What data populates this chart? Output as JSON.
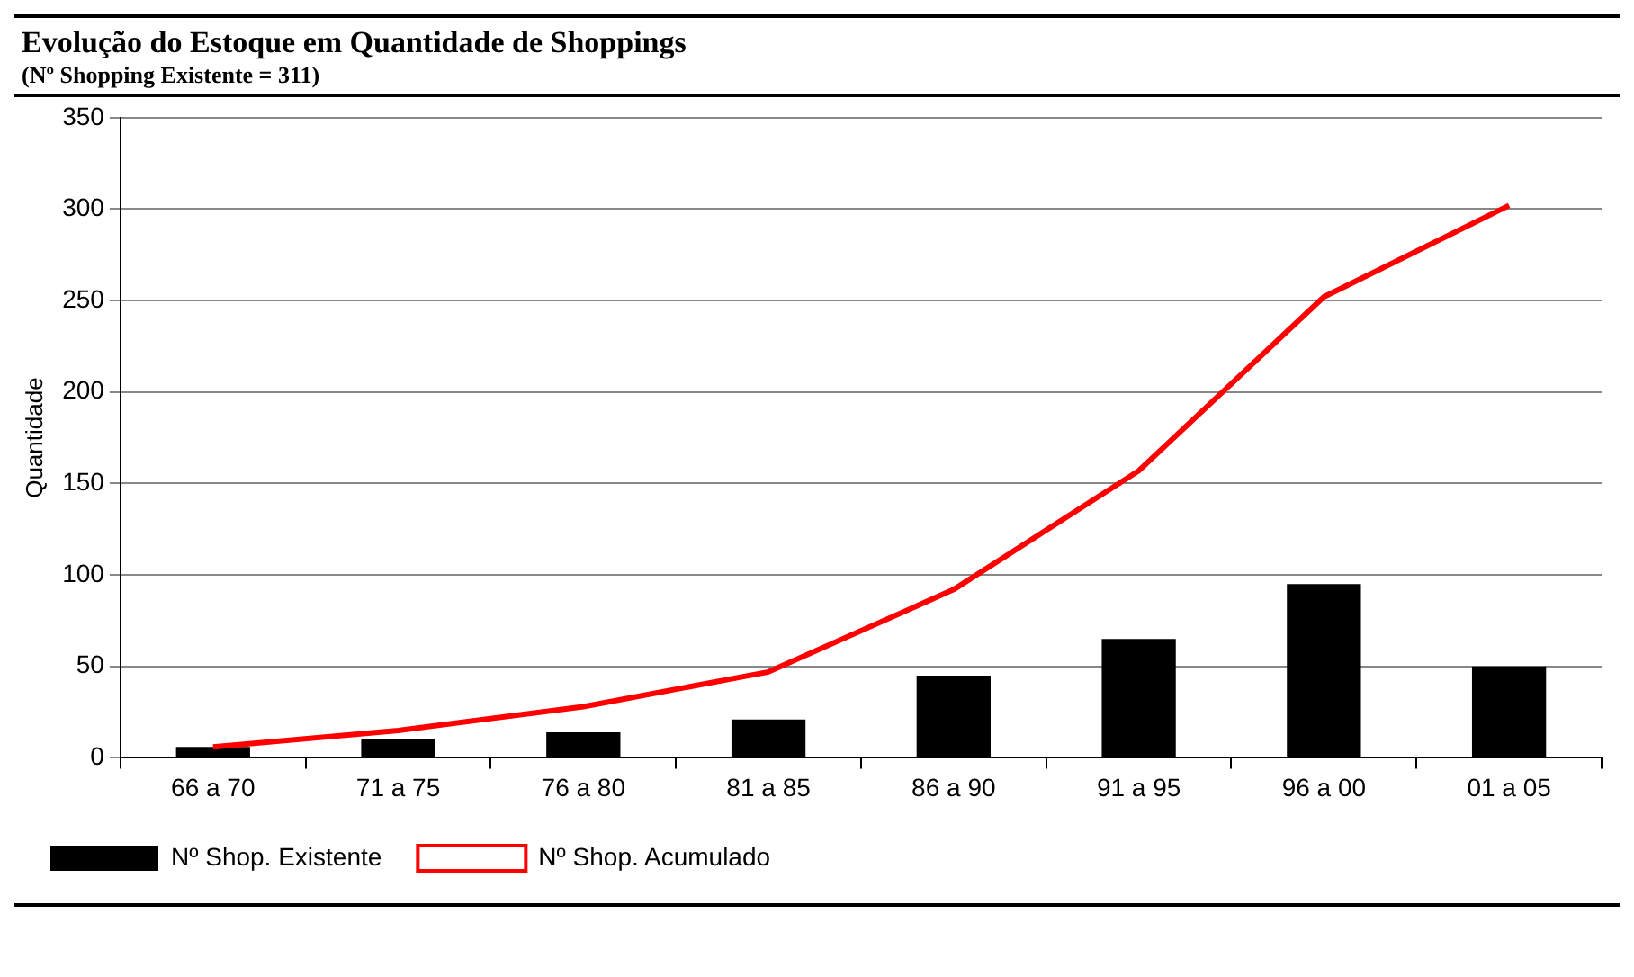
{
  "chart_data": {
    "type": "bar",
    "title": "Evolução do Estoque em Quantidade de Shoppings",
    "subtitle": "(Nº Shopping Existente = 311)",
    "ylabel": "Quantidade",
    "categories": [
      "66 a 70",
      "71 a 75",
      "76 a 80",
      "81 a 85",
      "86 a 90",
      "91 a 95",
      "96 a 00",
      "01 a 05"
    ],
    "series": [
      {
        "name": "Nº Shop. Existente",
        "color": "#000000",
        "values": [
          6,
          10,
          14,
          21,
          45,
          65,
          95,
          50
        ]
      },
      {
        "name": "Nº Shop. Acumulado",
        "type": "line",
        "color": "#ff0000",
        "values": [
          6,
          15,
          28,
          47,
          92,
          157,
          252,
          302
        ]
      }
    ],
    "ylim": [
      0,
      350
    ],
    "yticks": [
      0,
      50,
      100,
      150,
      200,
      250,
      300,
      350
    ],
    "grid": "y",
    "legend": "bottom left",
    "marker": "none"
  }
}
